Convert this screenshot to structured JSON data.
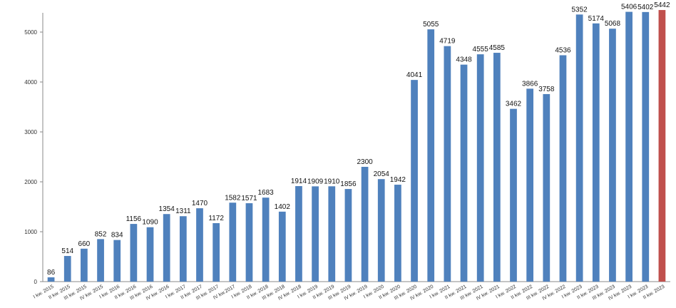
{
  "chart_data": {
    "type": "bar",
    "title": "",
    "xlabel": "",
    "ylabel": "",
    "ylim": [
      0,
      5500
    ],
    "yticks": [
      0,
      1000,
      2000,
      3000,
      4000,
      5000
    ],
    "grid": false,
    "legend": "none",
    "categories": [
      "I kw. 2015",
      "II kw. 2015",
      "III kw. 2015",
      "IV kw. 2015",
      "I kw. 2016",
      "II kw. 2016",
      "III kw. 2016",
      "IV kw. 2016",
      "I kw. 2017",
      "II kw. 2017",
      "III kw. 2017",
      "IV kw.2017",
      "I kw. 2018",
      "II kw. 2018",
      "III kw. 2018",
      "IV kw. 2018",
      "I kw. 2019",
      "II kw. 2019",
      "III kw. 2019",
      "IV kw. 2019",
      "I kw. 2020",
      "II kw. 2020",
      "III kw. 2020",
      "IV kw. 2020",
      "I kw. 2021",
      "II kw. 2021",
      "III kw. 2021",
      "IV kw. 2021",
      "I kw. 2022",
      "II kw. 2022",
      "III kw. 2022",
      "IV kw. 2022",
      "I kw. 2023",
      "II kw. 2023",
      "III kw. 2023",
      "IV kw. 2023",
      "I kw. 2023",
      "II kw. 2023"
    ],
    "values": [
      86,
      514,
      660,
      852,
      834,
      1156,
      1090,
      1354,
      1311,
      1470,
      1172,
      1582,
      1571,
      1683,
      1402,
      1914,
      1909,
      1910,
      1856,
      2300,
      2054,
      1942,
      4041,
      5055,
      4719,
      4348,
      4555,
      4585,
      3462,
      3866,
      3758,
      4536,
      5352,
      5174,
      5068,
      5406,
      5402,
      5442
    ],
    "bar_color": "#4F81BD",
    "highlight_color": "#C0504D",
    "highlight_index": 37
  }
}
